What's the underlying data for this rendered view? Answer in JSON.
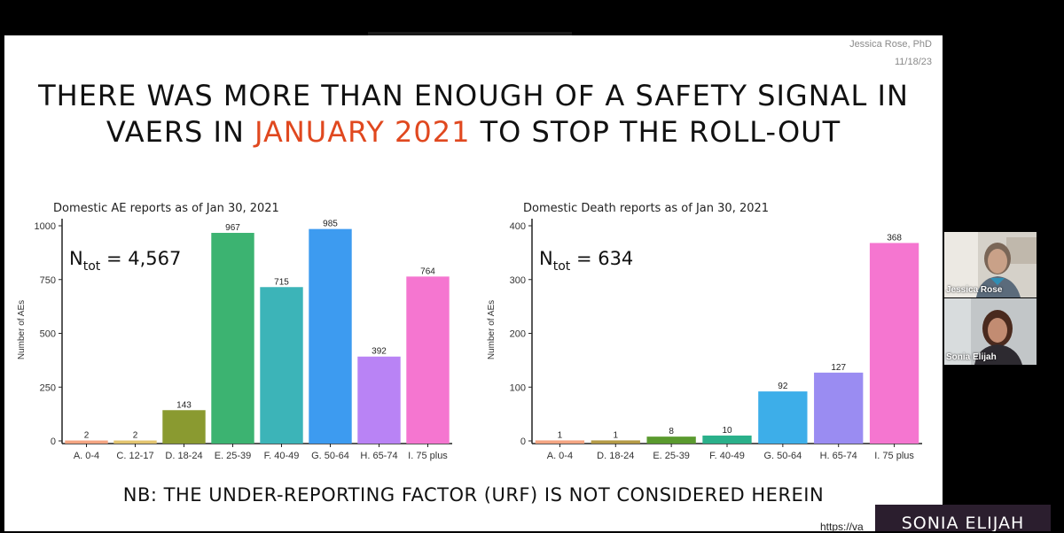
{
  "slide": {
    "author_name": "Jessica Rose, PhD",
    "author_date": "11/18/23",
    "title_line1": "THERE WAS MORE THAN ENOUGH OF A SAFETY SIGNAL IN",
    "title_line2_pre": "VAERS IN ",
    "title_line2_highlight": "JANUARY 2021",
    "title_line2_post": " TO STOP THE ROLL-OUT",
    "highlight_color": "#e0481f",
    "footnote": "NB: THE UNDER-REPORTING FACTOR (URF) IS NOT CONSIDERED HEREIN",
    "url_fragment": "https://va"
  },
  "participants": [
    {
      "name": "Jessica Rose"
    },
    {
      "name": "Sonia Elijah"
    }
  ],
  "speaker_caption": "SONIA ELIJAH",
  "chart_data": [
    {
      "type": "bar",
      "title": "Domestic AE reports as of Jan 30, 2021",
      "ylabel": "Number of AEs",
      "xlabel": "",
      "ylim": [
        0,
        1000
      ],
      "yticks": [
        0,
        250,
        500,
        750,
        1000
      ],
      "annotation": {
        "prefix": "N",
        "sub": "tot",
        "text": " = 4,567"
      },
      "categories": [
        "A. 0-4",
        "C. 12-17",
        "D. 18-24",
        "E. 25-39",
        "F. 40-49",
        "G. 50-64",
        "H. 65-74",
        "I. 75 plus"
      ],
      "values": [
        2,
        2,
        143,
        967,
        715,
        985,
        392,
        764
      ],
      "colors": [
        "#f4a582",
        "#e3c46f",
        "#8a9a30",
        "#3cb371",
        "#3cb4b8",
        "#3d9bf0",
        "#b983f5",
        "#f576d0"
      ],
      "grid": false,
      "legend": "none"
    },
    {
      "type": "bar",
      "title": "Domestic Death reports as of Jan 30, 2021",
      "ylabel": "Number of AEs",
      "xlabel": "",
      "ylim": [
        0,
        400
      ],
      "yticks": [
        0,
        100,
        200,
        300,
        400
      ],
      "annotation": {
        "prefix": "N",
        "sub": "tot",
        "text": " = 634"
      },
      "categories": [
        "A. 0-4",
        "D. 18-24",
        "E. 25-39",
        "F. 40-49",
        "G. 50-64",
        "H. 65-74",
        "I. 75 plus"
      ],
      "values": [
        1,
        1,
        8,
        10,
        92,
        127,
        368
      ],
      "colors": [
        "#f4a582",
        "#b59b46",
        "#5a9a2e",
        "#2ab08a",
        "#3daee9",
        "#9a8cf2",
        "#f576d0"
      ],
      "grid": false,
      "legend": "none"
    }
  ]
}
